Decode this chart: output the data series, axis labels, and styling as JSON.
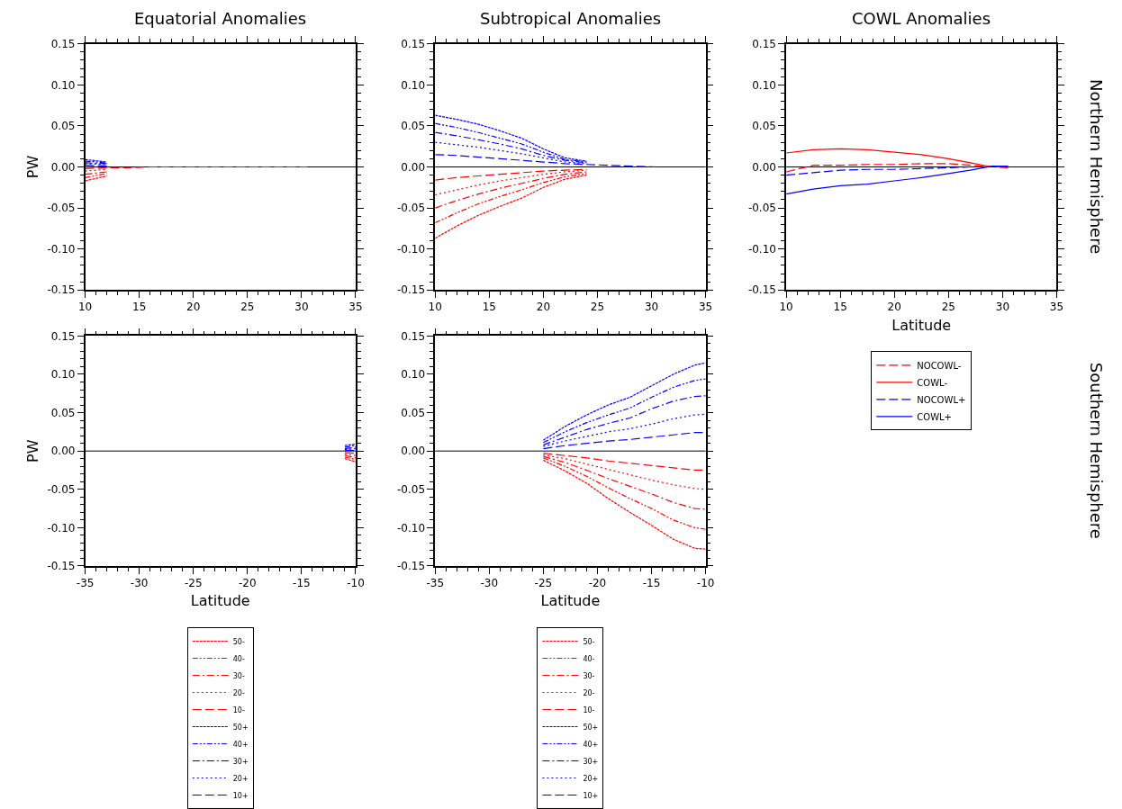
{
  "chart_data": [
    {
      "type": "line",
      "title": "Equatorial Anomalies",
      "ylabel": "PW",
      "xlim": [
        10,
        35
      ],
      "xticks": [
        10,
        15,
        20,
        25,
        30,
        35
      ],
      "ylim": [
        -0.15,
        0.15
      ],
      "yticks": [
        {
          "value": -0.15,
          "label": "-0.15"
        },
        {
          "value": -0.1,
          "label": "-0.10"
        },
        {
          "value": -0.05,
          "label": "-0.05"
        },
        {
          "value": 0,
          "label": "0.00"
        },
        {
          "value": 0.05,
          "label": "0.05"
        },
        {
          "value": 0.1,
          "label": "0.10"
        },
        {
          "value": 0.15,
          "label": "0.15"
        }
      ],
      "grid": false,
      "ref_lines": [
        {
          "axis": "y",
          "value": 0,
          "color": "#000000"
        }
      ],
      "x": [
        10,
        12,
        14,
        16,
        18,
        20,
        24,
        28,
        30.5
      ],
      "series": [
        {
          "color": "#0000ff",
          "line_style": "shortdash",
          "values": [
            0.009,
            0.006,
            null,
            null,
            null,
            null,
            null,
            null,
            null
          ]
        },
        {
          "color": "#0000ff",
          "line_style": "dashdotdot",
          "values": [
            0.007,
            0.005,
            null,
            null,
            null,
            null,
            null,
            null,
            null
          ]
        },
        {
          "color": "#0000ff",
          "line_style": "dashdot",
          "values": [
            0.005,
            0.004,
            null,
            null,
            null,
            null,
            null,
            null,
            null
          ]
        },
        {
          "color": "#0000ff",
          "line_style": "dotted",
          "values": [
            0.004,
            0.003,
            null,
            null,
            null,
            null,
            null,
            null,
            null
          ]
        },
        {
          "color": "#0000ff",
          "line_style": "dashed",
          "values": [
            0.002,
            0.001,
            null,
            null,
            null,
            null,
            null,
            null,
            null
          ]
        },
        {
          "color": "#ff0000",
          "line_style": "shortdash",
          "values": [
            -0.017,
            -0.011,
            null,
            null,
            null,
            null,
            null,
            null,
            null
          ]
        },
        {
          "color": "#ff0000",
          "line_style": "dashdotdot",
          "values": [
            -0.013,
            -0.008,
            null,
            null,
            null,
            null,
            null,
            null,
            null
          ]
        },
        {
          "color": "#ff0000",
          "line_style": "dashdot",
          "values": [
            -0.009,
            -0.006,
            null,
            null,
            null,
            null,
            null,
            null,
            null
          ]
        },
        {
          "color": "#ff0000",
          "line_style": "dotted",
          "values": [
            -0.005,
            -0.003,
            null,
            null,
            null,
            null,
            null,
            null,
            null
          ]
        },
        {
          "color": "#ff0000",
          "line_style": "dashed",
          "values": [
            -0.002,
            -0.001,
            -0.001,
            0,
            0,
            0,
            0,
            0,
            0
          ]
        }
      ]
    },
    {
      "type": "line",
      "title": "Subtropical Anomalies",
      "xlim": [
        10,
        35
      ],
      "xticks": [
        10,
        15,
        20,
        25,
        30,
        35
      ],
      "ylim": [
        -0.15,
        0.15
      ],
      "yticks": [
        {
          "value": -0.15,
          "label": "-0.15"
        },
        {
          "value": -0.1,
          "label": "-0.10"
        },
        {
          "value": -0.05,
          "label": "-0.05"
        },
        {
          "value": 0,
          "label": "0.00"
        },
        {
          "value": 0.05,
          "label": "0.05"
        },
        {
          "value": 0.1,
          "label": "0.10"
        },
        {
          "value": 0.15,
          "label": "0.15"
        }
      ],
      "grid": false,
      "ref_lines": [
        {
          "axis": "y",
          "value": 0,
          "color": "#000000"
        }
      ],
      "x": [
        10,
        12,
        14,
        16,
        18,
        20,
        22,
        24,
        26,
        28,
        30.5
      ],
      "series": [
        {
          "color": "#ff0000",
          "line_style": "shortdash",
          "values": [
            -0.087,
            -0.072,
            -0.059,
            -0.048,
            -0.038,
            -0.025,
            -0.015,
            -0.01,
            null,
            null,
            null
          ]
        },
        {
          "color": "#ff0000",
          "line_style": "dashdotdot",
          "values": [
            -0.068,
            -0.056,
            -0.045,
            -0.036,
            -0.028,
            -0.019,
            -0.012,
            -0.008,
            null,
            null,
            null
          ]
        },
        {
          "color": "#ff0000",
          "line_style": "dashdot",
          "values": [
            -0.05,
            -0.041,
            -0.033,
            -0.026,
            -0.02,
            -0.014,
            -0.009,
            -0.006,
            null,
            null,
            null
          ]
        },
        {
          "color": "#ff0000",
          "line_style": "dotted",
          "values": [
            -0.034,
            -0.028,
            -0.022,
            -0.017,
            -0.013,
            -0.009,
            -0.006,
            -0.004,
            null,
            null,
            null
          ]
        },
        {
          "color": "#ff0000",
          "line_style": "dashed",
          "values": [
            -0.016,
            -0.013,
            -0.011,
            -0.009,
            -0.007,
            -0.005,
            -0.004,
            -0.003,
            null,
            null,
            null
          ]
        },
        {
          "color": "#0000ff",
          "line_style": "shortdash",
          "values": [
            0.063,
            0.058,
            0.052,
            0.044,
            0.035,
            0.022,
            0.011,
            0.007,
            null,
            null,
            null
          ]
        },
        {
          "color": "#0000ff",
          "line_style": "dashdotdot",
          "values": [
            0.053,
            0.048,
            0.042,
            0.035,
            0.028,
            0.018,
            0.009,
            0.006,
            null,
            null,
            null
          ]
        },
        {
          "color": "#0000ff",
          "line_style": "dashdot",
          "values": [
            0.042,
            0.038,
            0.033,
            0.028,
            0.022,
            0.014,
            0.008,
            0.005,
            null,
            null,
            null
          ]
        },
        {
          "color": "#0000ff",
          "line_style": "dotted",
          "values": [
            0.03,
            0.027,
            0.024,
            0.02,
            0.016,
            0.011,
            0.006,
            0.004,
            null,
            null,
            null
          ]
        },
        {
          "color": "#0000ff",
          "line_style": "dashed",
          "values": [
            0.015,
            0.014,
            0.012,
            0.01,
            0.008,
            0.006,
            0.004,
            0.003,
            0.002,
            0.001,
            0
          ]
        }
      ]
    },
    {
      "type": "line",
      "title": "COWL Anomalies",
      "xlabel": "Latitude",
      "xlim": [
        10,
        35
      ],
      "xticks": [
        10,
        15,
        20,
        25,
        30,
        35
      ],
      "ylim": [
        -0.15,
        0.15
      ],
      "yticks": [
        {
          "value": -0.15,
          "label": "-0.15"
        },
        {
          "value": -0.1,
          "label": "-0.10"
        },
        {
          "value": -0.05,
          "label": "-0.05"
        },
        {
          "value": 0,
          "label": "0.00"
        },
        {
          "value": 0.05,
          "label": "0.05"
        },
        {
          "value": 0.1,
          "label": "0.10"
        },
        {
          "value": 0.15,
          "label": "0.15"
        }
      ],
      "grid": false,
      "legend": "bottom",
      "ref_lines": [
        {
          "axis": "y",
          "value": 0,
          "color": "#000000"
        }
      ],
      "annotations": [
        "Northern Hemisphere"
      ],
      "x": [
        10,
        12.5,
        15,
        17.5,
        20,
        22.5,
        25,
        27,
        29,
        30.5
      ],
      "series": [
        {
          "name": "NOCOWL-",
          "color": "#ff0000",
          "line_style": "dashed",
          "values": [
            -0.006,
            0.002,
            0.002,
            0.003,
            0.003,
            0.004,
            0.004,
            0.002,
            0,
            -0.001
          ]
        },
        {
          "name": "COWL-",
          "color": "#ff0000",
          "line_style": "solid",
          "values": [
            0.017,
            0.021,
            0.022,
            0.021,
            0.018,
            0.015,
            0.01,
            0.005,
            0,
            0
          ]
        },
        {
          "name": "NOCOWL+",
          "color": "#0000ff",
          "line_style": "dashed",
          "values": [
            -0.01,
            -0.007,
            -0.004,
            -0.003,
            -0.003,
            -0.002,
            -0.001,
            0,
            0,
            0.001
          ]
        },
        {
          "name": "COWL+",
          "color": "#0000ff",
          "line_style": "solid",
          "values": [
            -0.033,
            -0.027,
            -0.023,
            -0.021,
            -0.017,
            -0.013,
            -0.008,
            -0.004,
            0.001,
            0.001
          ]
        }
      ]
    },
    {
      "type": "line",
      "xlabel": "Latitude",
      "ylabel": "PW",
      "xlim": [
        -35,
        -10
      ],
      "xticks": [
        -35,
        -30,
        -25,
        -20,
        -15,
        -10
      ],
      "ylim": [
        -0.15,
        0.15
      ],
      "yticks": [
        {
          "value": -0.15,
          "label": "-0.15"
        },
        {
          "value": -0.1,
          "label": "-0.10"
        },
        {
          "value": -0.05,
          "label": "-0.05"
        },
        {
          "value": 0,
          "label": "0.00"
        },
        {
          "value": 0.05,
          "label": "0.05"
        },
        {
          "value": 0.1,
          "label": "0.10"
        },
        {
          "value": 0.15,
          "label": "0.15"
        }
      ],
      "grid": false,
      "legend": "bottom",
      "ref_lines": [
        {
          "axis": "y",
          "value": 0,
          "color": "#000000"
        }
      ],
      "x": [
        -11,
        -10
      ],
      "series": [
        {
          "name": "50-",
          "color": "#ff0000",
          "line_style": "shortdash",
          "values": [
            -0.01,
            -0.014
          ]
        },
        {
          "name": "40-",
          "color": "#ff0000",
          "line_style": "dashdotdot",
          "values": [
            -0.008,
            -0.011
          ]
        },
        {
          "name": "30-",
          "color": "#ff0000",
          "line_style": "dashdot",
          "values": [
            -0.006,
            -0.009
          ]
        },
        {
          "name": "20-",
          "color": "#ff0000",
          "line_style": "dotted",
          "values": [
            -0.004,
            -0.006
          ]
        },
        {
          "name": "10-",
          "color": "#ff0000",
          "line_style": "dashed",
          "values": [
            -0.002,
            -0.003
          ]
        },
        {
          "name": "50+",
          "color": "#0000ff",
          "line_style": "shortdash",
          "values": [
            0.007,
            0.009
          ]
        },
        {
          "name": "40+",
          "color": "#0000ff",
          "line_style": "dashdotdot",
          "values": [
            0.005,
            0.007
          ]
        },
        {
          "name": "30+",
          "color": "#0000ff",
          "line_style": "dashdot",
          "values": [
            0.003,
            0.005
          ]
        },
        {
          "name": "20+",
          "color": "#0000ff",
          "line_style": "dotted",
          "values": [
            0.002,
            0.003
          ]
        },
        {
          "name": "10+",
          "color": "#0000ff",
          "line_style": "dashed",
          "values": [
            0.001,
            0.001
          ]
        }
      ]
    },
    {
      "type": "line",
      "xlabel": "Latitude",
      "xlim": [
        -35,
        -10
      ],
      "xticks": [
        -35,
        -30,
        -25,
        -20,
        -15,
        -10
      ],
      "ylim": [
        -0.15,
        0.15
      ],
      "yticks": [
        {
          "value": -0.15,
          "label": "-0.15"
        },
        {
          "value": -0.1,
          "label": "-0.10"
        },
        {
          "value": -0.05,
          "label": "-0.05"
        },
        {
          "value": 0,
          "label": "0.00"
        },
        {
          "value": 0.05,
          "label": "0.05"
        },
        {
          "value": 0.1,
          "label": "0.10"
        },
        {
          "value": 0.15,
          "label": "0.15"
        }
      ],
      "grid": false,
      "legend": "bottom",
      "ref_lines": [
        {
          "axis": "y",
          "value": 0,
          "color": "#000000"
        }
      ],
      "annotations": [
        "Southern Hemisphere"
      ],
      "x": [
        -25,
        -23,
        -21,
        -19,
        -17,
        -15,
        -13,
        -11,
        -10
      ],
      "series": [
        {
          "name": "50-",
          "color": "#ff0000",
          "line_style": "shortdash",
          "values": [
            -0.012,
            -0.026,
            -0.042,
            -0.062,
            -0.08,
            -0.097,
            -0.115,
            -0.127,
            -0.128
          ]
        },
        {
          "name": "40-",
          "color": "#ff0000",
          "line_style": "dashdotdot",
          "values": [
            -0.009,
            -0.02,
            -0.033,
            -0.048,
            -0.062,
            -0.075,
            -0.09,
            -0.1,
            -0.102
          ]
        },
        {
          "name": "30-",
          "color": "#ff0000",
          "line_style": "dashdot",
          "values": [
            -0.007,
            -0.015,
            -0.025,
            -0.036,
            -0.046,
            -0.056,
            -0.067,
            -0.075,
            -0.076
          ]
        },
        {
          "name": "20-",
          "color": "#ff0000",
          "line_style": "dotted",
          "values": [
            -0.005,
            -0.01,
            -0.017,
            -0.024,
            -0.031,
            -0.038,
            -0.044,
            -0.049,
            -0.05
          ]
        },
        {
          "name": "10-",
          "color": "#ff0000",
          "line_style": "dashed",
          "values": [
            -0.003,
            -0.006,
            -0.009,
            -0.013,
            -0.016,
            -0.019,
            -0.022,
            -0.025,
            -0.025
          ]
        },
        {
          "name": "50+",
          "color": "#0000ff",
          "line_style": "shortdash",
          "values": [
            0.014,
            0.032,
            0.047,
            0.06,
            0.07,
            0.085,
            0.1,
            0.112,
            0.115
          ]
        },
        {
          "name": "40+",
          "color": "#0000ff",
          "line_style": "dashdotdot",
          "values": [
            0.011,
            0.025,
            0.037,
            0.047,
            0.056,
            0.07,
            0.083,
            0.092,
            0.094
          ]
        },
        {
          "name": "30+",
          "color": "#0000ff",
          "line_style": "dashdot",
          "values": [
            0.008,
            0.018,
            0.028,
            0.036,
            0.043,
            0.055,
            0.065,
            0.071,
            0.072
          ]
        },
        {
          "name": "20+",
          "color": "#0000ff",
          "line_style": "dotted",
          "values": [
            0.006,
            0.013,
            0.019,
            0.025,
            0.029,
            0.035,
            0.042,
            0.047,
            0.048
          ]
        },
        {
          "name": "10+",
          "color": "#0000ff",
          "line_style": "dashed",
          "values": [
            0.003,
            0.007,
            0.01,
            0.013,
            0.015,
            0.018,
            0.021,
            0.024,
            0.024
          ]
        }
      ]
    }
  ]
}
